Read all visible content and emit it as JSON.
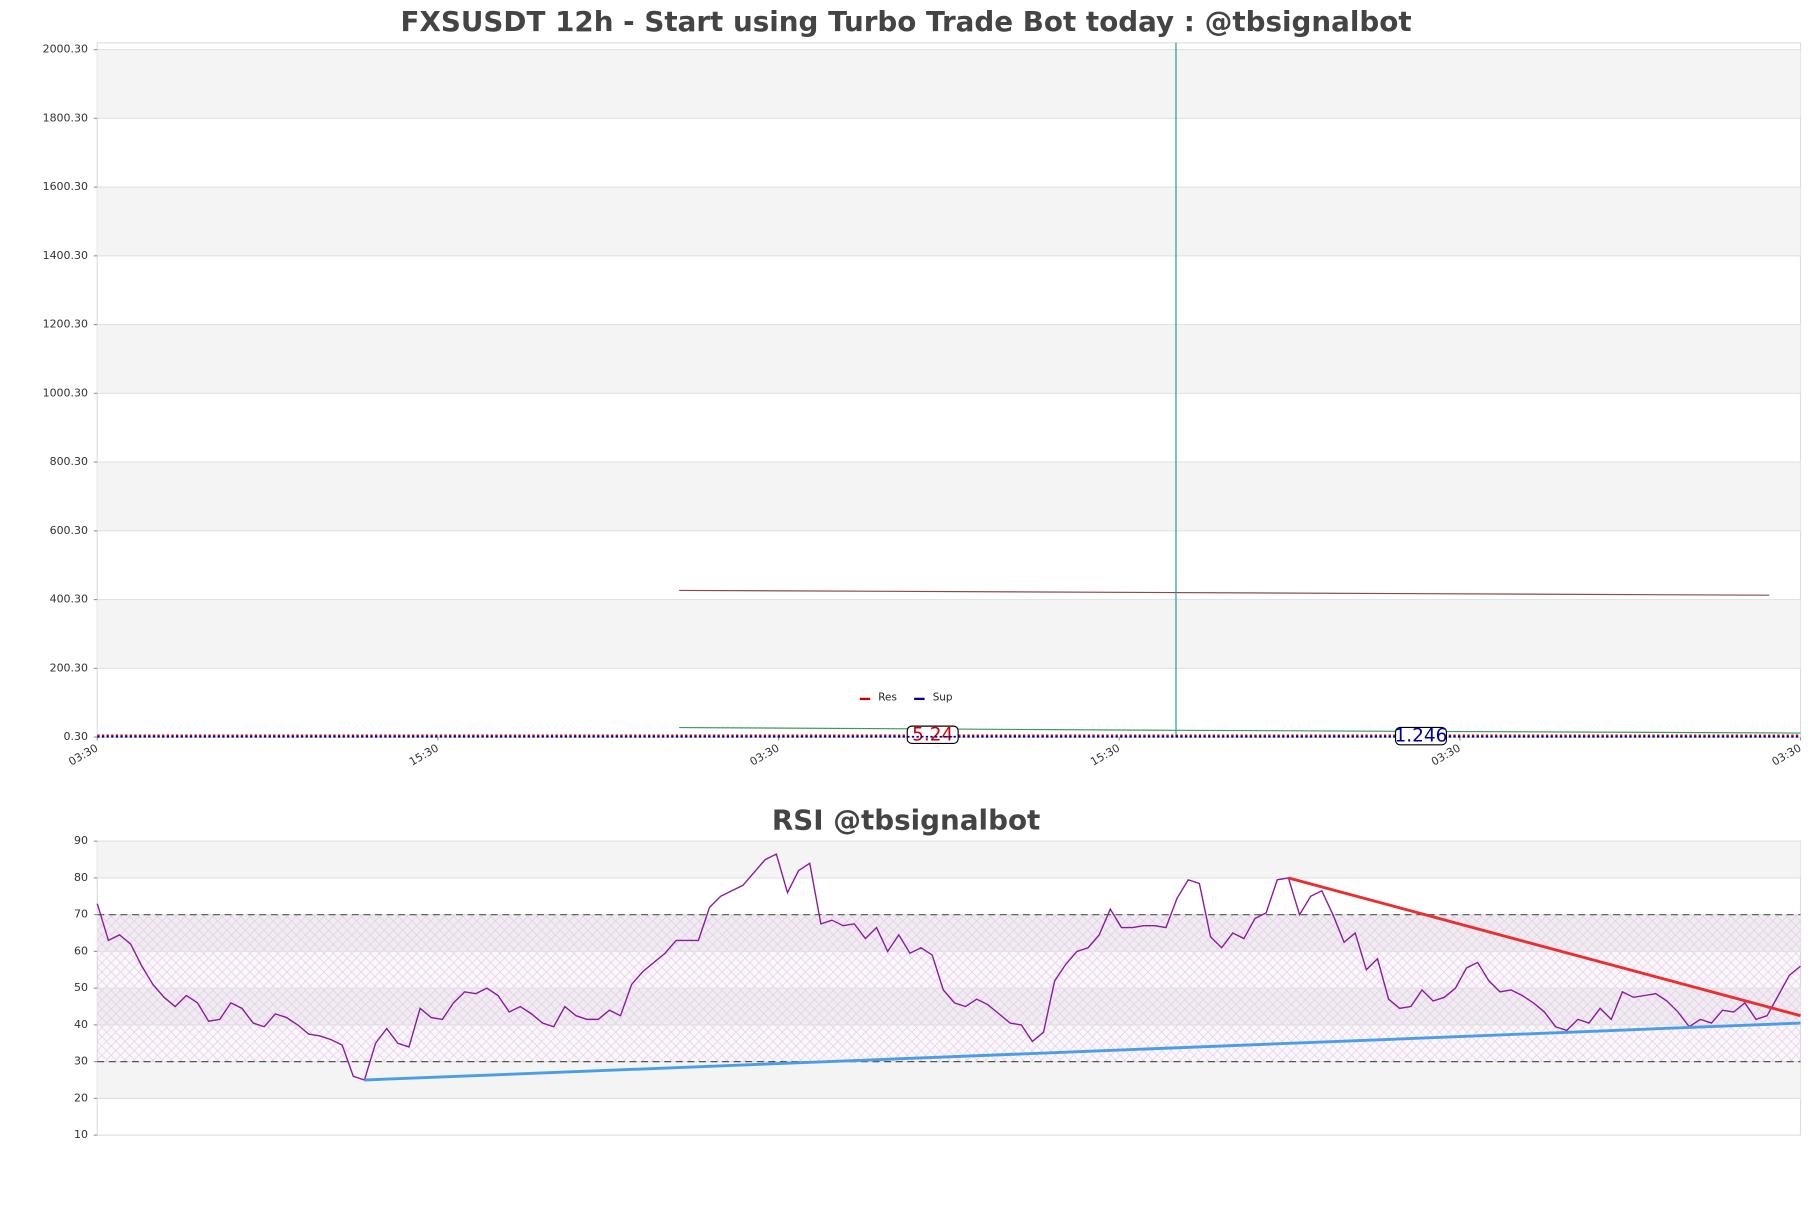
{
  "chart_data": [
    {
      "type": "line",
      "title": "FXSUSDT 12h - Start using Turbo Trade Bot today : @tbsignalbot",
      "xlim": [
        0,
        60
      ],
      "xticks": [
        {
          "value": 0,
          "label": "03:30"
        },
        {
          "value": 12,
          "label": "15:30"
        },
        {
          "value": 24,
          "label": "03:30"
        },
        {
          "value": 36,
          "label": "15:30"
        },
        {
          "value": 48,
          "label": "03:30"
        },
        {
          "value": 60,
          "label": "03:30"
        }
      ],
      "ylim": [
        0.3,
        2020
      ],
      "yticks": [
        {
          "value": 0.3,
          "label": "0.30"
        },
        {
          "value": 200.3,
          "label": "200.30"
        },
        {
          "value": 400.3,
          "label": "400.30"
        },
        {
          "value": 600.3,
          "label": "600.30"
        },
        {
          "value": 800.3,
          "label": "800.30"
        },
        {
          "value": 1000.3,
          "label": "1000.30"
        },
        {
          "value": 1200.3,
          "label": "1200.30"
        },
        {
          "value": 1400.3,
          "label": "1400.30"
        },
        {
          "value": 1600.3,
          "label": "1600.30"
        },
        {
          "value": 1800.3,
          "label": "1800.30"
        },
        {
          "value": 2000.3,
          "label": "2000.30"
        }
      ],
      "grid": true,
      "series": [
        {
          "color": "#8b4a4a",
          "x": [
            20.5,
            58.9
          ],
          "values": [
            427,
            413
          ]
        },
        {
          "color": "#3a9a5a",
          "x": [
            20.5,
            38,
            60
          ],
          "values": [
            28,
            20,
            12
          ]
        },
        {
          "color": "#1a9e8f",
          "x": [
            38,
            38
          ],
          "values": [
            0.3,
            2020
          ]
        }
      ],
      "levels": [
        {
          "name": "Res",
          "color": "#cc0000",
          "value": 5.24
        },
        {
          "name": "Sup",
          "color": "#000099",
          "value": 1.246
        }
      ]
    },
    {
      "type": "line",
      "title": "RSI @tbsignalbot",
      "ylim": [
        10,
        90
      ],
      "yticks": [
        10,
        20,
        30,
        40,
        50,
        60,
        70,
        80,
        90
      ],
      "grid": true,
      "color": "#8b1a9e",
      "values": [
        73,
        63,
        64.5,
        62,
        56,
        51,
        47.5,
        45,
        48,
        46,
        41,
        41.5,
        46,
        44.5,
        40.5,
        39.5,
        43,
        42,
        40,
        37.5,
        37,
        36,
        34.5,
        26,
        25,
        35,
        39,
        35,
        34,
        44.5,
        42,
        41.5,
        46,
        49,
        48.5,
        50,
        48,
        43.5,
        45,
        43,
        40.5,
        39.5,
        45,
        42.5,
        41.5,
        41.5,
        44,
        42.5,
        51,
        54.5,
        57,
        59.5,
        63,
        63,
        63,
        72,
        75,
        76.5,
        78,
        81.5,
        85,
        86.5,
        76,
        82,
        84,
        67.5,
        68.5,
        67,
        67.5,
        63.5,
        66.5,
        60,
        64.5,
        59.5,
        61,
        59,
        49.5,
        46,
        45,
        47,
        45.5,
        43,
        40.5,
        40,
        35.5,
        38,
        52,
        56.5,
        60,
        61,
        64.5,
        71.5,
        66.5,
        66.5,
        67,
        67,
        66.5,
        74.5,
        79.5,
        78.5,
        64,
        61,
        65,
        63.5,
        69,
        70.5,
        79.5,
        80,
        70,
        75,
        76.5,
        70,
        62.5,
        65,
        55,
        58,
        47,
        44.5,
        45,
        49.5,
        46.5,
        47.5,
        50,
        55.5,
        57,
        52,
        49,
        49.5,
        48,
        46,
        43.5,
        39.5,
        38.5,
        41.5,
        40.5,
        44.5,
        41.5,
        49,
        47.5,
        48,
        48.5,
        46.5,
        43.5,
        39.5,
        41.5,
        40.5,
        44,
        43.5,
        46,
        41.5,
        42.5,
        48,
        53.5,
        56
      ],
      "thresholds": [
        70,
        30
      ],
      "band": [
        30,
        70
      ],
      "trendlines": [
        {
          "color": "#e83030",
          "x": [
            107,
            153
          ],
          "values": [
            80,
            42.5
          ]
        },
        {
          "color": "#4a9ee8",
          "x": [
            24,
            153
          ],
          "values": [
            25,
            40.5
          ]
        }
      ]
    }
  ]
}
